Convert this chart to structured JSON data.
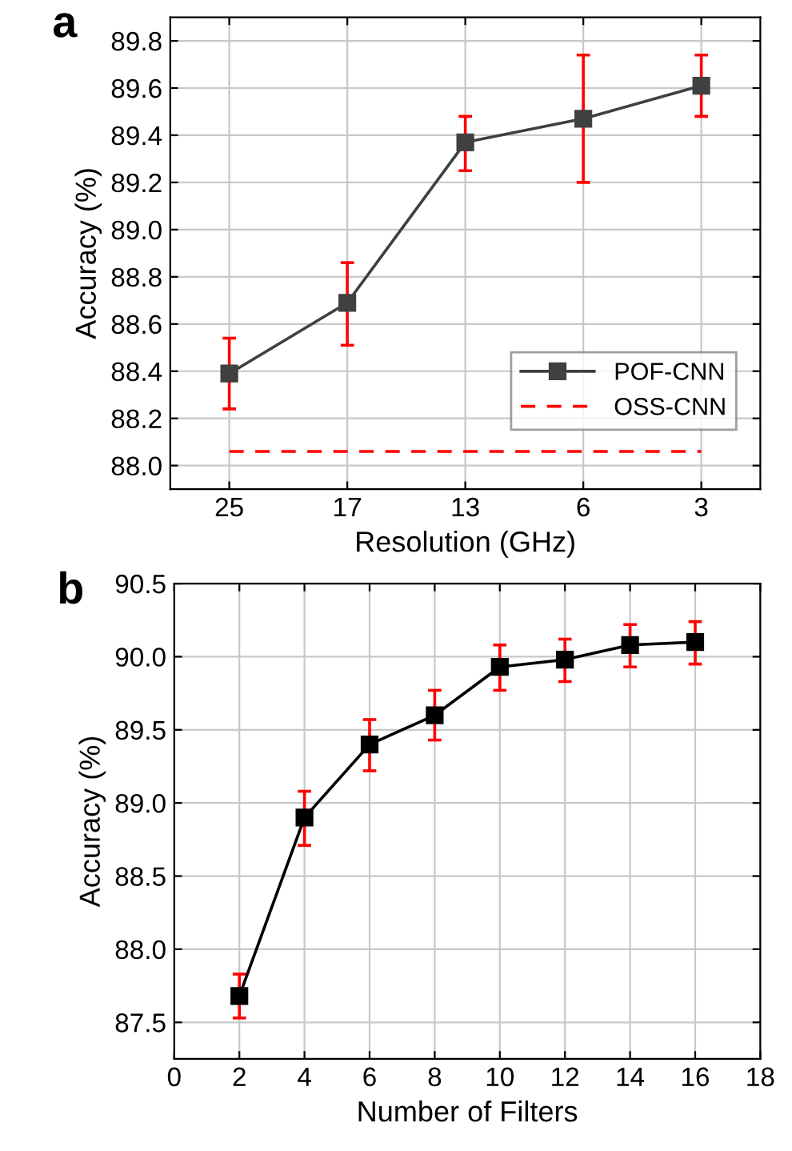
{
  "chart_data": [
    {
      "type": "line",
      "title": "a",
      "xlabel": "Resolution (GHz)",
      "ylabel": "Accuracy (%)",
      "categories": [
        "25",
        "17",
        "13",
        "6",
        "3"
      ],
      "ylim": [
        87.9,
        89.9
      ],
      "yticks": [
        {
          "value": 88.0,
          "label": "88.0"
        },
        88.2,
        88.4,
        88.6,
        88.8,
        {
          "value": 89.0,
          "label": "89.0"
        },
        89.2,
        89.4,
        89.6,
        89.8
      ],
      "grid": true,
      "legend": "bottom right",
      "series": [
        {
          "name": "POF-CNN",
          "color": "#404040",
          "marker": "square",
          "line_style": "solid",
          "values": [
            88.39,
            88.69,
            89.37,
            89.47,
            89.61
          ],
          "errors": [
            [
              88.24,
              88.54
            ],
            [
              88.51,
              88.86
            ],
            [
              89.25,
              89.48
            ],
            [
              89.2,
              89.74
            ],
            [
              89.48,
              89.74
            ]
          ]
        },
        {
          "name": "OSS-CNN",
          "color": "#ff0000",
          "marker": "none",
          "line_style": "dashed",
          "values": [
            88.06,
            88.06,
            88.06,
            88.06,
            88.06
          ]
        }
      ]
    },
    {
      "type": "line",
      "title": "b",
      "xlabel": "Number of Filters",
      "ylabel": "Accuracy (%)",
      "xlim": [
        0,
        18
      ],
      "xticks": [
        0,
        2,
        4,
        6,
        8,
        10,
        12,
        14,
        16,
        18
      ],
      "ylim": [
        87.25,
        90.5
      ],
      "yticks": [
        {
          "value": 87.5,
          "label": "87.5"
        },
        {
          "value": 88.0,
          "label": "88.0"
        },
        {
          "value": 88.5,
          "label": "88.5"
        },
        {
          "value": 89.0,
          "label": "89.0"
        },
        {
          "value": 89.5,
          "label": "89.5"
        },
        {
          "value": 90.0,
          "label": "90.0"
        },
        {
          "value": 90.5,
          "label": "90.5"
        }
      ],
      "grid": true,
      "series": [
        {
          "color": "#000000",
          "marker": "square",
          "line_style": "solid",
          "x": [
            2,
            4,
            6,
            8,
            10,
            12,
            14,
            16
          ],
          "values": [
            87.68,
            88.9,
            89.4,
            89.6,
            89.93,
            89.98,
            90.08,
            90.1
          ],
          "errors": [
            [
              87.53,
              87.83
            ],
            [
              88.71,
              89.08
            ],
            [
              89.22,
              89.57
            ],
            [
              89.43,
              89.77
            ],
            [
              89.77,
              90.08
            ],
            [
              89.83,
              90.12
            ],
            [
              89.93,
              90.22
            ],
            [
              89.95,
              90.24
            ]
          ]
        }
      ]
    }
  ]
}
